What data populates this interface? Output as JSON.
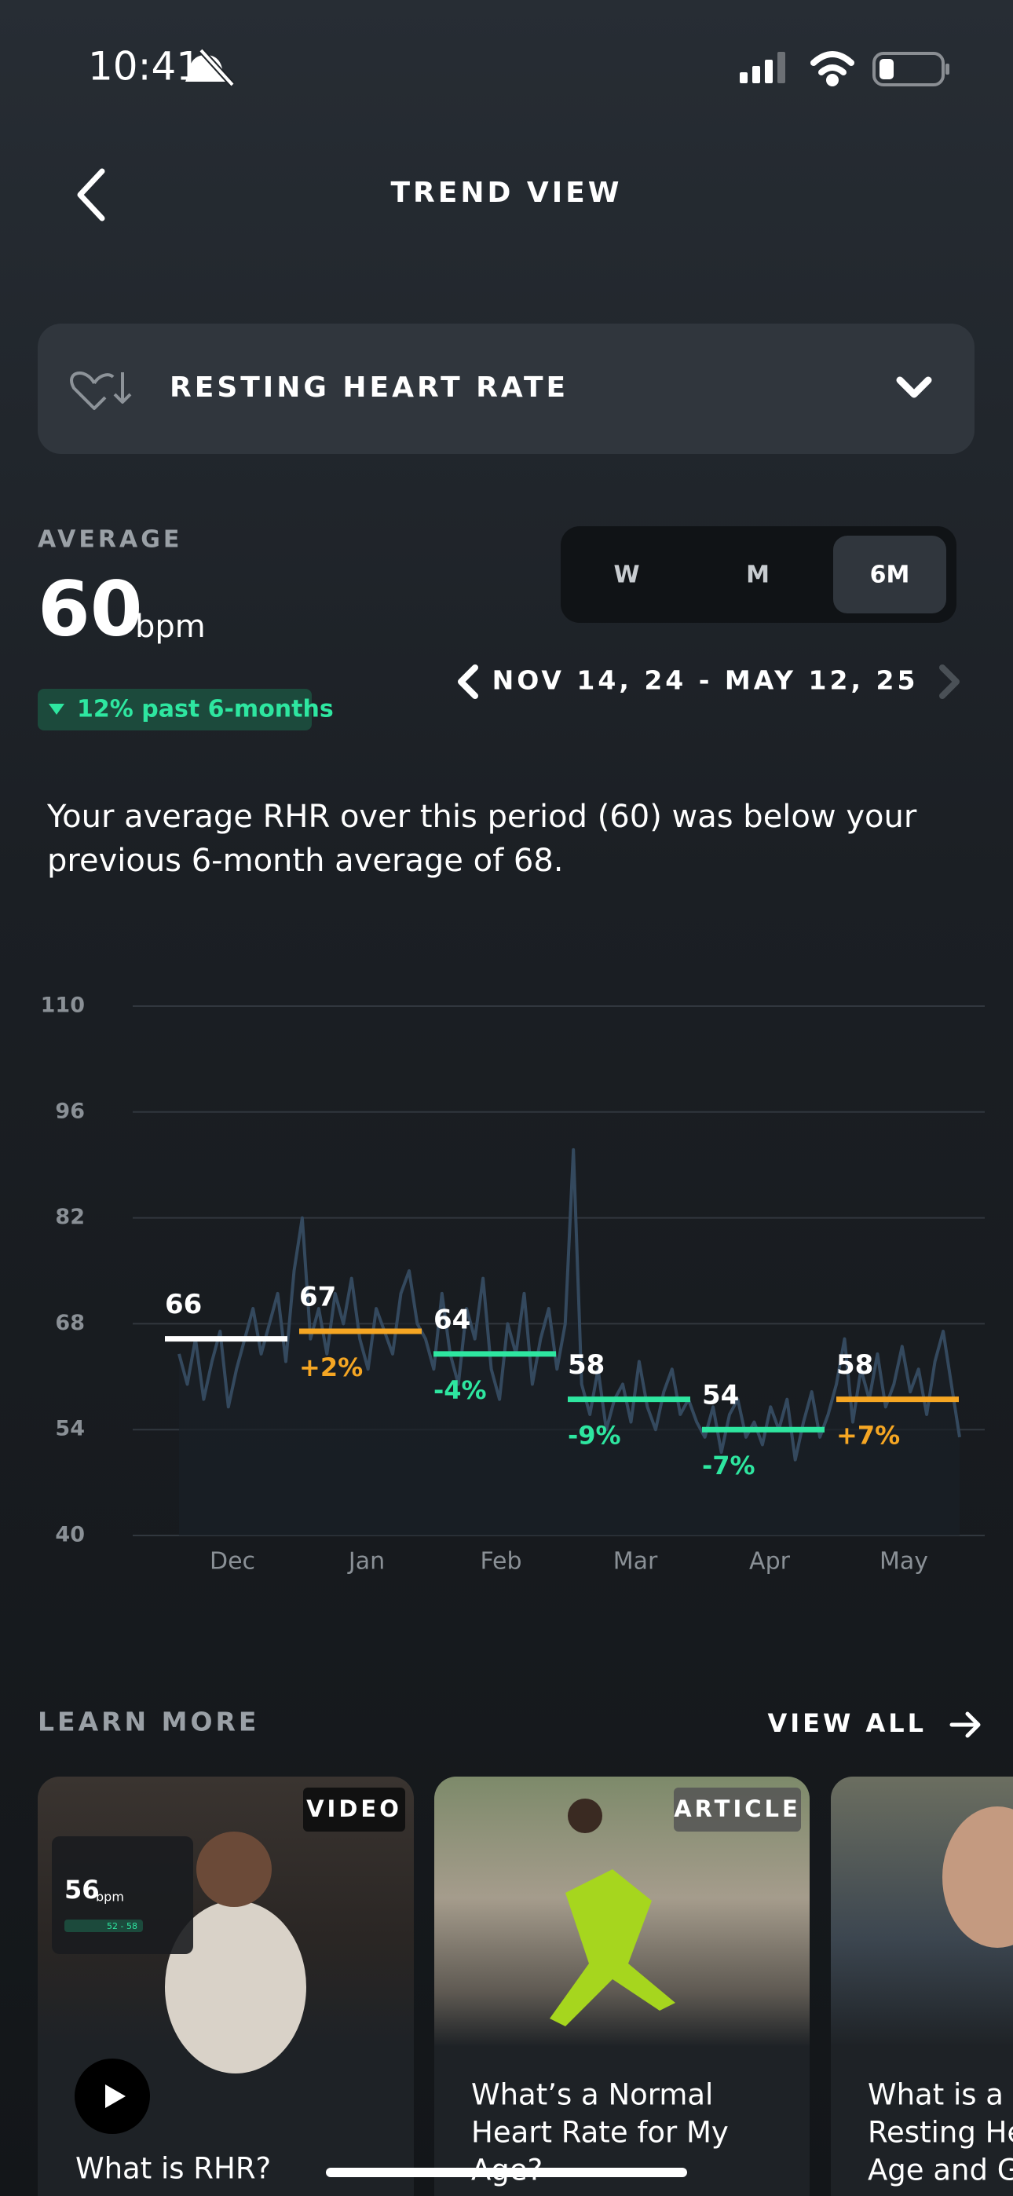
{
  "status_bar": {
    "time": "10:41"
  },
  "header": {
    "title": "TREND VIEW"
  },
  "metric_selector": {
    "label": "RESTING HEART RATE"
  },
  "summary": {
    "label": "AVERAGE",
    "value": "60",
    "unit": "bpm",
    "change": "12% past 6-months"
  },
  "range_tabs": {
    "tabs": [
      "W",
      "M",
      "6M"
    ],
    "selected": 2
  },
  "date_range": "NOV 14, 24 - MAY 12, 25",
  "description": [
    "Your average RHR over this period (60) was below your",
    "previous 6-month average of 68."
  ],
  "chart_data": {
    "type": "line",
    "ylim": [
      40,
      110
    ],
    "yticks": [
      40,
      54,
      68,
      82,
      96,
      110
    ],
    "grid": true,
    "categories": [
      "Dec",
      "Jan",
      "Feb",
      "Mar",
      "Apr",
      "May"
    ],
    "daily": {
      "color": "#34495e",
      "values": [
        64,
        60,
        66,
        58,
        63,
        67,
        57,
        62,
        66,
        70,
        64,
        68,
        72,
        63,
        75,
        82,
        66,
        70,
        64,
        72,
        68,
        74,
        66,
        62,
        70,
        67,
        64,
        72,
        75,
        68,
        66,
        62,
        72,
        64,
        60,
        70,
        66,
        74,
        62,
        58,
        68,
        64,
        72,
        60,
        66,
        70,
        62,
        68,
        91,
        60,
        56,
        62,
        54,
        58,
        60,
        55,
        63,
        57,
        54,
        59,
        62,
        56,
        58,
        55,
        53,
        57,
        51,
        56,
        58,
        53,
        55,
        52,
        57,
        54,
        58,
        50,
        55,
        59,
        53,
        56,
        60,
        66,
        55,
        62,
        58,
        64,
        57,
        60,
        65,
        59,
        62,
        56,
        63,
        67,
        60,
        53
      ]
    },
    "monthly": {
      "values": [
        66,
        67,
        64,
        58,
        54,
        58
      ],
      "colors": [
        "#ffffff",
        "#f5a623",
        "#2ee6a0",
        "#2ee6a0",
        "#2ee6a0",
        "#f5a623"
      ]
    },
    "changes": {
      "values": [
        null,
        2,
        -4,
        -9,
        -7,
        7
      ],
      "value_labels": [
        null,
        "+2%",
        "-4%",
        "-9%",
        "-7%",
        "+7%"
      ]
    }
  },
  "learn_more": {
    "title": "LEARN MORE",
    "action": "VIEW ALL",
    "cards": [
      {
        "tag": "VIDEO",
        "title": [
          "What is RHR?"
        ],
        "thumb": {
          "value": "56",
          "unit": "bpm",
          "range": "52 - 58"
        }
      },
      {
        "tag": "ARTICLE",
        "title": [
          "What’s a Normal",
          "Heart Rate for My",
          "Age?"
        ]
      },
      {
        "title": [
          "What is a Good",
          "Resting Heart Rate for My",
          "Age and Gender?"
        ]
      }
    ]
  }
}
